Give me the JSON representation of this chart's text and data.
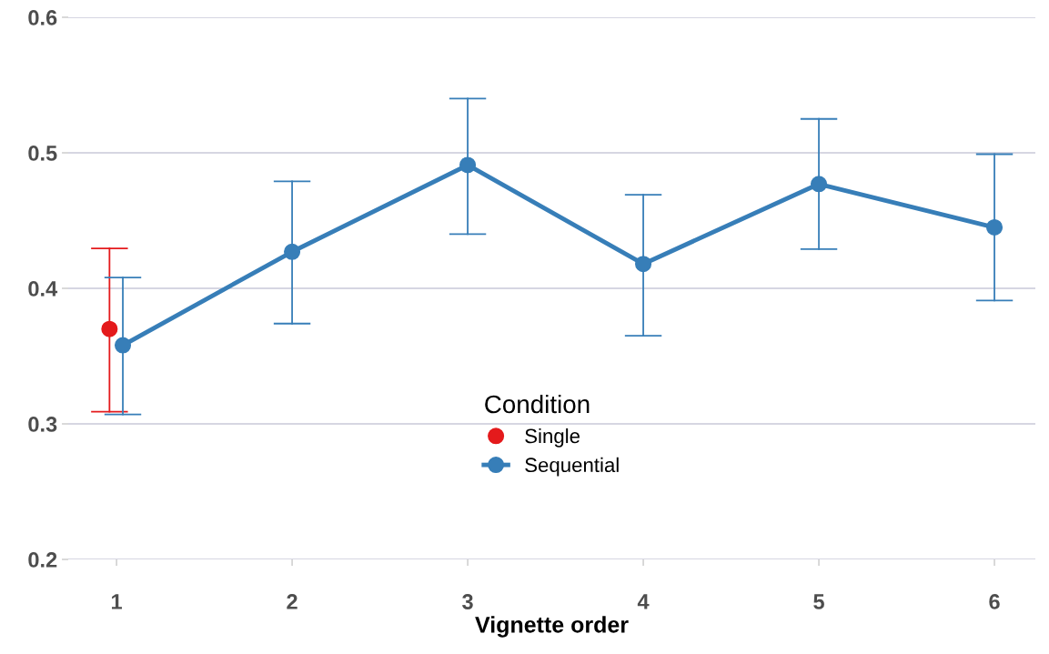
{
  "chart_data": {
    "type": "line",
    "xlabel": "Vignette order",
    "legend_title": "Condition",
    "xlim": [
      0.725,
      6.233
    ],
    "xticks": [
      1,
      2,
      3,
      4,
      5,
      6
    ],
    "ylim": [
      0.2,
      0.6
    ],
    "yticks": [
      0.2,
      0.3,
      0.4,
      0.5,
      0.6
    ],
    "grid": "y",
    "legend": "bottom",
    "marker": "circle",
    "line_style": "solid",
    "series": [
      {
        "name": "Single",
        "color": "#e41a1c",
        "type": "scatter",
        "x": [
          0.96
        ],
        "values": [
          0.37
        ],
        "errors": [
          [
            0.309,
            0.4295
          ]
        ]
      },
      {
        "name": "Sequential",
        "color": "#377eb8",
        "type": "line",
        "x": [
          1.036,
          2,
          3,
          4,
          5,
          6
        ],
        "values": [
          0.358,
          0.427,
          0.491,
          0.418,
          0.477,
          0.445
        ],
        "errors": [
          [
            0.307,
            0.408
          ],
          [
            0.374,
            0.479
          ],
          [
            0.44,
            0.54
          ],
          [
            0.365,
            0.469
          ],
          [
            0.429,
            0.525
          ],
          [
            0.391,
            0.499
          ]
        ]
      }
    ]
  }
}
